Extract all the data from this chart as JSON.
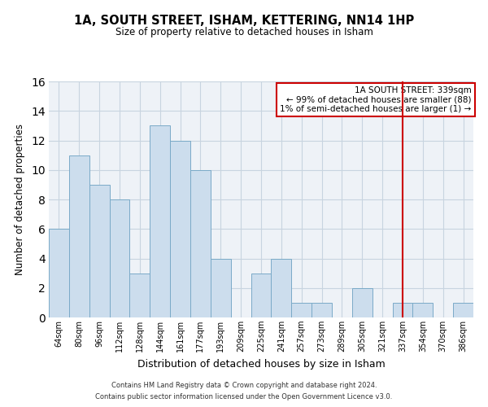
{
  "title": "1A, SOUTH STREET, ISHAM, KETTERING, NN14 1HP",
  "subtitle": "Size of property relative to detached houses in Isham",
  "xlabel": "Distribution of detached houses by size in Isham",
  "ylabel": "Number of detached properties",
  "categories": [
    "64sqm",
    "80sqm",
    "96sqm",
    "112sqm",
    "128sqm",
    "144sqm",
    "161sqm",
    "177sqm",
    "193sqm",
    "209sqm",
    "225sqm",
    "241sqm",
    "257sqm",
    "273sqm",
    "289sqm",
    "305sqm",
    "321sqm",
    "337sqm",
    "354sqm",
    "370sqm",
    "386sqm"
  ],
  "values": [
    6,
    11,
    9,
    8,
    3,
    13,
    12,
    10,
    4,
    0,
    3,
    4,
    1,
    1,
    0,
    2,
    0,
    1,
    1,
    0,
    1
  ],
  "bar_color": "#ccdded",
  "bar_edge_color": "#7aaac8",
  "ylim": [
    0,
    16
  ],
  "yticks": [
    0,
    2,
    4,
    6,
    8,
    10,
    12,
    14,
    16
  ],
  "grid_color": "#c8d4e0",
  "background_color": "#eef2f7",
  "vline_x_idx": 17,
  "vline_color": "#cc0000",
  "legend_text_line1": "1A SOUTH STREET: 339sqm",
  "legend_text_line2": "← 99% of detached houses are smaller (88)",
  "legend_text_line3": "1% of semi-detached houses are larger (1) →",
  "legend_box_color": "#cc0000",
  "footer_line1": "Contains HM Land Registry data © Crown copyright and database right 2024.",
  "footer_line2": "Contains public sector information licensed under the Open Government Licence v3.0."
}
